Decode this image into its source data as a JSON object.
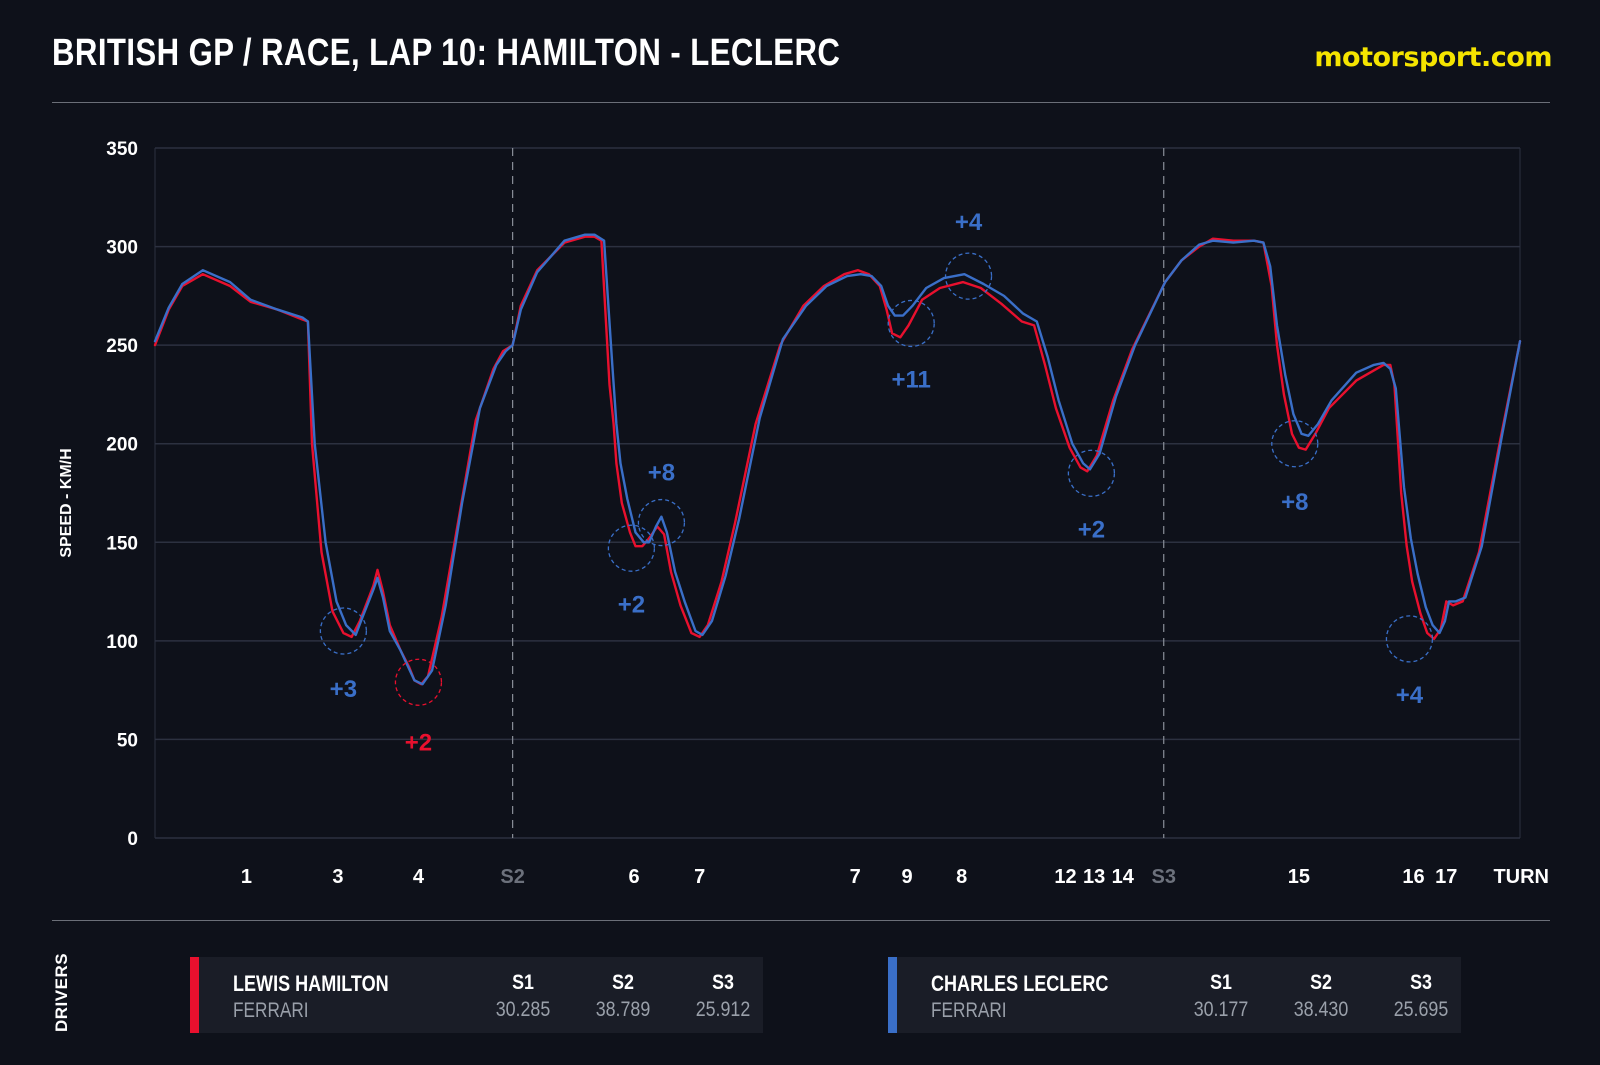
{
  "header": {
    "title": "BRITISH GP / RACE, LAP 10: HAMILTON - LECLERC",
    "brand": "motorsport.com",
    "brand_color": "#f5e400"
  },
  "colors": {
    "hamilton": "#e8102e",
    "leclerc": "#3a6fc8",
    "background": "#0e111a",
    "card": "#1a1d27"
  },
  "chart_data": {
    "type": "line",
    "title": "",
    "xlabel": "TURN",
    "ylabel": "SPEED - KM/H",
    "ylim": [
      0,
      350
    ],
    "yticks": [
      0,
      50,
      100,
      150,
      200,
      250,
      300,
      350
    ],
    "xlim": [
      0,
      1000
    ],
    "grid": true,
    "legend": "bottom",
    "sector_lines": [
      {
        "label": "S2",
        "x": 262
      },
      {
        "label": "S3",
        "x": 739
      }
    ],
    "turn_labels": [
      {
        "label": "1",
        "x": 67
      },
      {
        "label": "3",
        "x": 134
      },
      {
        "label": "4",
        "x": 193
      },
      {
        "label": "6",
        "x": 351
      },
      {
        "label": "7",
        "x": 399
      },
      {
        "label": "7",
        "x": 513
      },
      {
        "label": "9",
        "x": 551
      },
      {
        "label": "8",
        "x": 591
      },
      {
        "label": "12",
        "x": 667
      },
      {
        "label": "13",
        "x": 688
      },
      {
        "label": "14",
        "x": 709
      },
      {
        "label": "15",
        "x": 838
      },
      {
        "label": "16",
        "x": 922
      },
      {
        "label": "17",
        "x": 946
      }
    ],
    "series": [
      {
        "name": "LEWIS HAMILTON",
        "color": "#e8102e",
        "points": [
          [
            0,
            250
          ],
          [
            10,
            268
          ],
          [
            20,
            280
          ],
          [
            35,
            286
          ],
          [
            55,
            280
          ],
          [
            70,
            272
          ],
          [
            90,
            268
          ],
          [
            108,
            263
          ],
          [
            112,
            262
          ],
          [
            115,
            200
          ],
          [
            122,
            145
          ],
          [
            130,
            115
          ],
          [
            138,
            104
          ],
          [
            144,
            102
          ],
          [
            150,
            110
          ],
          [
            160,
            128
          ],
          [
            163,
            136
          ],
          [
            167,
            125
          ],
          [
            172,
            108
          ],
          [
            180,
            95
          ],
          [
            186,
            87
          ],
          [
            190,
            80
          ],
          [
            195,
            78
          ],
          [
            200,
            82
          ],
          [
            210,
            112
          ],
          [
            222,
            160
          ],
          [
            235,
            212
          ],
          [
            248,
            238
          ],
          [
            255,
            247
          ],
          [
            262,
            250
          ],
          [
            268,
            270
          ],
          [
            280,
            288
          ],
          [
            300,
            302
          ],
          [
            315,
            305
          ],
          [
            322,
            305
          ],
          [
            327,
            303
          ],
          [
            333,
            230
          ],
          [
            336,
            210
          ],
          [
            338,
            190
          ],
          [
            342,
            170
          ],
          [
            348,
            155
          ],
          [
            352,
            148
          ],
          [
            357,
            148
          ],
          [
            362,
            152
          ],
          [
            368,
            158
          ],
          [
            373,
            154
          ],
          [
            378,
            135
          ],
          [
            385,
            118
          ],
          [
            393,
            104
          ],
          [
            399,
            102
          ],
          [
            405,
            108
          ],
          [
            415,
            130
          ],
          [
            425,
            160
          ],
          [
            440,
            210
          ],
          [
            458,
            250
          ],
          [
            475,
            270
          ],
          [
            490,
            280
          ],
          [
            505,
            286
          ],
          [
            515,
            288
          ],
          [
            523,
            286
          ],
          [
            531,
            280
          ],
          [
            536,
            268
          ],
          [
            540,
            256
          ],
          [
            546,
            254
          ],
          [
            552,
            260
          ],
          [
            562,
            273
          ],
          [
            575,
            279
          ],
          [
            592,
            282
          ],
          [
            605,
            279
          ],
          [
            620,
            271
          ],
          [
            635,
            262
          ],
          [
            644,
            260
          ],
          [
            652,
            240
          ],
          [
            660,
            218
          ],
          [
            670,
            198
          ],
          [
            678,
            188
          ],
          [
            683,
            186
          ],
          [
            690,
            194
          ],
          [
            702,
            222
          ],
          [
            716,
            248
          ],
          [
            728,
            265
          ],
          [
            740,
            282
          ],
          [
            752,
            293
          ],
          [
            765,
            300
          ],
          [
            775,
            304
          ],
          [
            790,
            303
          ],
          [
            805,
            303
          ],
          [
            812,
            302
          ],
          [
            818,
            280
          ],
          [
            822,
            250
          ],
          [
            827,
            225
          ],
          [
            833,
            205
          ],
          [
            838,
            198
          ],
          [
            843,
            197
          ],
          [
            850,
            205
          ],
          [
            860,
            218
          ],
          [
            880,
            232
          ],
          [
            895,
            238
          ],
          [
            900,
            240
          ],
          [
            905,
            240
          ],
          [
            908,
            230
          ],
          [
            913,
            175
          ],
          [
            917,
            148
          ],
          [
            921,
            130
          ],
          [
            927,
            114
          ],
          [
            932,
            104
          ],
          [
            937,
            101
          ],
          [
            942,
            106
          ],
          [
            946,
            120
          ],
          [
            951,
            118
          ],
          [
            958,
            120
          ],
          [
            970,
            145
          ],
          [
            985,
            200
          ],
          [
            1000,
            252
          ]
        ]
      },
      {
        "name": "CHARLES LECLERC",
        "color": "#3a6fc8",
        "points": [
          [
            0,
            252
          ],
          [
            10,
            269
          ],
          [
            20,
            281
          ],
          [
            35,
            288
          ],
          [
            55,
            282
          ],
          [
            70,
            273
          ],
          [
            90,
            268
          ],
          [
            108,
            264
          ],
          [
            112,
            262
          ],
          [
            117,
            200
          ],
          [
            125,
            150
          ],
          [
            133,
            120
          ],
          [
            140,
            108
          ],
          [
            147,
            103
          ],
          [
            152,
            112
          ],
          [
            160,
            126
          ],
          [
            163,
            132
          ],
          [
            167,
            122
          ],
          [
            172,
            105
          ],
          [
            180,
            95
          ],
          [
            186,
            86
          ],
          [
            190,
            80
          ],
          [
            196,
            78
          ],
          [
            203,
            85
          ],
          [
            213,
            118
          ],
          [
            225,
            170
          ],
          [
            238,
            218
          ],
          [
            250,
            240
          ],
          [
            257,
            247
          ],
          [
            262,
            250
          ],
          [
            268,
            268
          ],
          [
            280,
            287
          ],
          [
            300,
            303
          ],
          [
            315,
            306
          ],
          [
            322,
            306
          ],
          [
            329,
            303
          ],
          [
            335,
            240
          ],
          [
            338,
            210
          ],
          [
            341,
            190
          ],
          [
            346,
            172
          ],
          [
            352,
            155
          ],
          [
            358,
            150
          ],
          [
            362,
            150
          ],
          [
            367,
            158
          ],
          [
            371,
            163
          ],
          [
            375,
            155
          ],
          [
            381,
            135
          ],
          [
            388,
            120
          ],
          [
            396,
            105
          ],
          [
            401,
            103
          ],
          [
            408,
            110
          ],
          [
            418,
            133
          ],
          [
            428,
            162
          ],
          [
            443,
            213
          ],
          [
            460,
            253
          ],
          [
            477,
            270
          ],
          [
            492,
            280
          ],
          [
            507,
            285
          ],
          [
            517,
            286
          ],
          [
            525,
            285
          ],
          [
            532,
            280
          ],
          [
            537,
            270
          ],
          [
            542,
            265
          ],
          [
            548,
            265
          ],
          [
            555,
            270
          ],
          [
            565,
            279
          ],
          [
            578,
            284
          ],
          [
            593,
            286
          ],
          [
            607,
            281
          ],
          [
            622,
            275
          ],
          [
            636,
            266
          ],
          [
            646,
            262
          ],
          [
            654,
            244
          ],
          [
            662,
            222
          ],
          [
            672,
            200
          ],
          [
            680,
            190
          ],
          [
            685,
            187
          ],
          [
            692,
            195
          ],
          [
            704,
            224
          ],
          [
            718,
            250
          ],
          [
            729,
            266
          ],
          [
            740,
            282
          ],
          [
            752,
            293
          ],
          [
            765,
            301
          ],
          [
            775,
            303
          ],
          [
            790,
            302
          ],
          [
            805,
            303
          ],
          [
            812,
            302
          ],
          [
            817,
            290
          ],
          [
            822,
            260
          ],
          [
            828,
            235
          ],
          [
            834,
            215
          ],
          [
            840,
            205
          ],
          [
            845,
            204
          ],
          [
            852,
            210
          ],
          [
            862,
            222
          ],
          [
            880,
            236
          ],
          [
            893,
            240
          ],
          [
            900,
            241
          ],
          [
            905,
            238
          ],
          [
            909,
            228
          ],
          [
            915,
            178
          ],
          [
            920,
            152
          ],
          [
            925,
            134
          ],
          [
            931,
            117
          ],
          [
            936,
            108
          ],
          [
            941,
            104
          ],
          [
            945,
            110
          ],
          [
            948,
            120
          ],
          [
            953,
            120
          ],
          [
            960,
            122
          ],
          [
            972,
            148
          ],
          [
            987,
            205
          ],
          [
            1000,
            252
          ]
        ]
      }
    ],
    "annotations": [
      {
        "text": "+3",
        "x": 138,
        "y": 105,
        "label_y": 76,
        "color": "#3a6fc8"
      },
      {
        "text": "+2",
        "x": 193,
        "y": 79,
        "label_y": 49,
        "color": "#e8102e"
      },
      {
        "text": "+2",
        "x": 349,
        "y": 147,
        "label_y": 119,
        "color": "#3a6fc8"
      },
      {
        "text": "+8",
        "x": 371,
        "y": 160,
        "label_y": 186,
        "color": "#3a6fc8"
      },
      {
        "text": "+11",
        "x": 554,
        "y": 261,
        "label_y": 233,
        "color": "#3a6fc8"
      },
      {
        "text": "+4",
        "x": 596,
        "y": 285,
        "label_y": 313,
        "color": "#3a6fc8"
      },
      {
        "text": "+2",
        "x": 686,
        "y": 185,
        "label_y": 157,
        "color": "#3a6fc8"
      },
      {
        "text": "+8",
        "x": 835,
        "y": 200,
        "label_y": 171,
        "color": "#3a6fc8"
      },
      {
        "text": "+4",
        "x": 919,
        "y": 101,
        "label_y": 73,
        "color": "#3a6fc8"
      }
    ]
  },
  "drivers": {
    "label": "DRIVERS",
    "list": [
      {
        "name": "LEWIS HAMILTON",
        "team": "FERRARI",
        "color": "#e8102e",
        "sectors": [
          {
            "label": "S1",
            "time": "30.285"
          },
          {
            "label": "S2",
            "time": "38.789"
          },
          {
            "label": "S3",
            "time": "25.912"
          }
        ]
      },
      {
        "name": "CHARLES LECLERC",
        "team": "FERRARI",
        "color": "#3a6fc8",
        "sectors": [
          {
            "label": "S1",
            "time": "30.177"
          },
          {
            "label": "S2",
            "time": "38.430"
          },
          {
            "label": "S3",
            "time": "25.695"
          }
        ]
      }
    ]
  }
}
